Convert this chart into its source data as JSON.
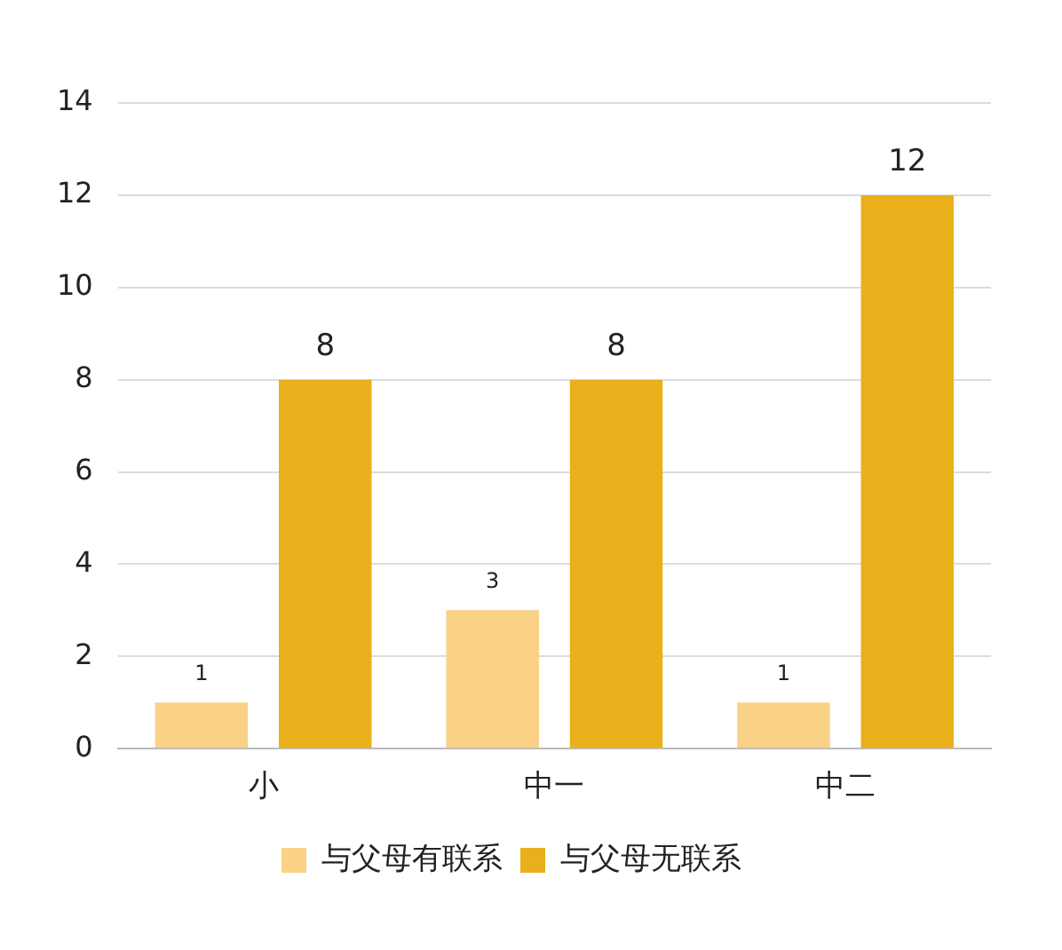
{
  "chart_data": {
    "type": "bar",
    "categories": [
      "小",
      "中一",
      "中二"
    ],
    "series": [
      {
        "name": "与父母有联系",
        "color": "#f9d287",
        "values": [
          1,
          3,
          1
        ]
      },
      {
        "name": "与父母无联系",
        "color": "#e9b01c",
        "values": [
          8,
          8,
          12
        ]
      }
    ],
    "ylim": [
      0,
      14
    ],
    "yticks": [
      0,
      2,
      4,
      6,
      8,
      10,
      12,
      14
    ],
    "grid": "y",
    "legend": "bottom",
    "data_labels": true
  }
}
